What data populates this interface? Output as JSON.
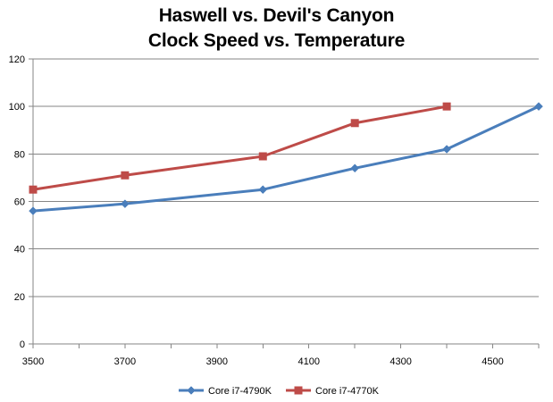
{
  "chart_data": {
    "type": "line",
    "title_lines": [
      "Haswell vs. Devil's Canyon",
      "Clock Speed vs. Temperature"
    ],
    "xlabel": "",
    "ylabel": "",
    "xlim": [
      3500,
      4600
    ],
    "ylim": [
      0,
      120
    ],
    "x_ticks": [
      3500,
      3700,
      3900,
      4100,
      4300,
      4500
    ],
    "y_ticks": [
      0,
      20,
      40,
      60,
      80,
      100,
      120
    ],
    "grid": "horizontal",
    "legend_position": "bottom",
    "series": [
      {
        "name": "Core i7-4790K",
        "color": "#4a7ebb",
        "marker": "diamond",
        "points": [
          [
            3500,
            56
          ],
          [
            3700,
            59
          ],
          [
            4000,
            65
          ],
          [
            4200,
            74
          ],
          [
            4400,
            82
          ],
          [
            4600,
            100
          ]
        ]
      },
      {
        "name": "Core i7-4770K",
        "color": "#be4b48",
        "marker": "square",
        "points": [
          [
            3500,
            65
          ],
          [
            3700,
            71
          ],
          [
            4000,
            79
          ],
          [
            4200,
            93
          ],
          [
            4400,
            100
          ]
        ]
      }
    ]
  }
}
